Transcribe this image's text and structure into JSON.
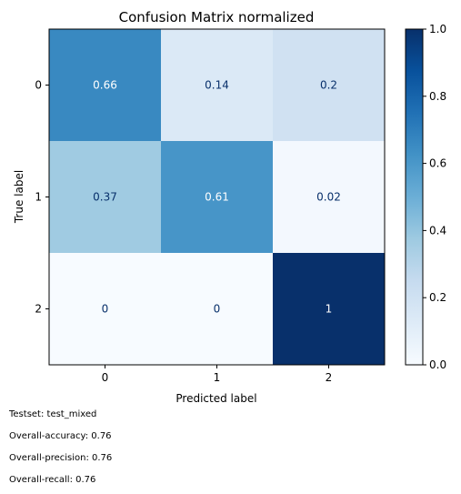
{
  "chart_data": {
    "type": "heatmap",
    "title": "Confusion Matrix normalized",
    "xlabel": "Predicted label",
    "ylabel": "True label",
    "x_categories": [
      "0",
      "1",
      "2"
    ],
    "y_categories": [
      "0",
      "1",
      "2"
    ],
    "matrix": [
      [
        0.66,
        0.14,
        0.2
      ],
      [
        0.37,
        0.61,
        0.02
      ],
      [
        0,
        0,
        1
      ]
    ],
    "cell_labels": [
      [
        "0.66",
        "0.14",
        "0.2"
      ],
      [
        "0.37",
        "0.61",
        "0.02"
      ],
      [
        "0",
        "0",
        "1"
      ]
    ],
    "colormap": "Blues",
    "colorbar": {
      "range": [
        0,
        1
      ],
      "ticks": [
        "0.0",
        "0.2",
        "0.4",
        "0.6",
        "0.8",
        "1.0"
      ]
    }
  },
  "footer": {
    "testset": "Testset: test_mixed",
    "accuracy": "Overall-accuracy: 0.76",
    "precision": "Overall-precision: 0.76",
    "recall": "Overall-recall: 0.76"
  }
}
